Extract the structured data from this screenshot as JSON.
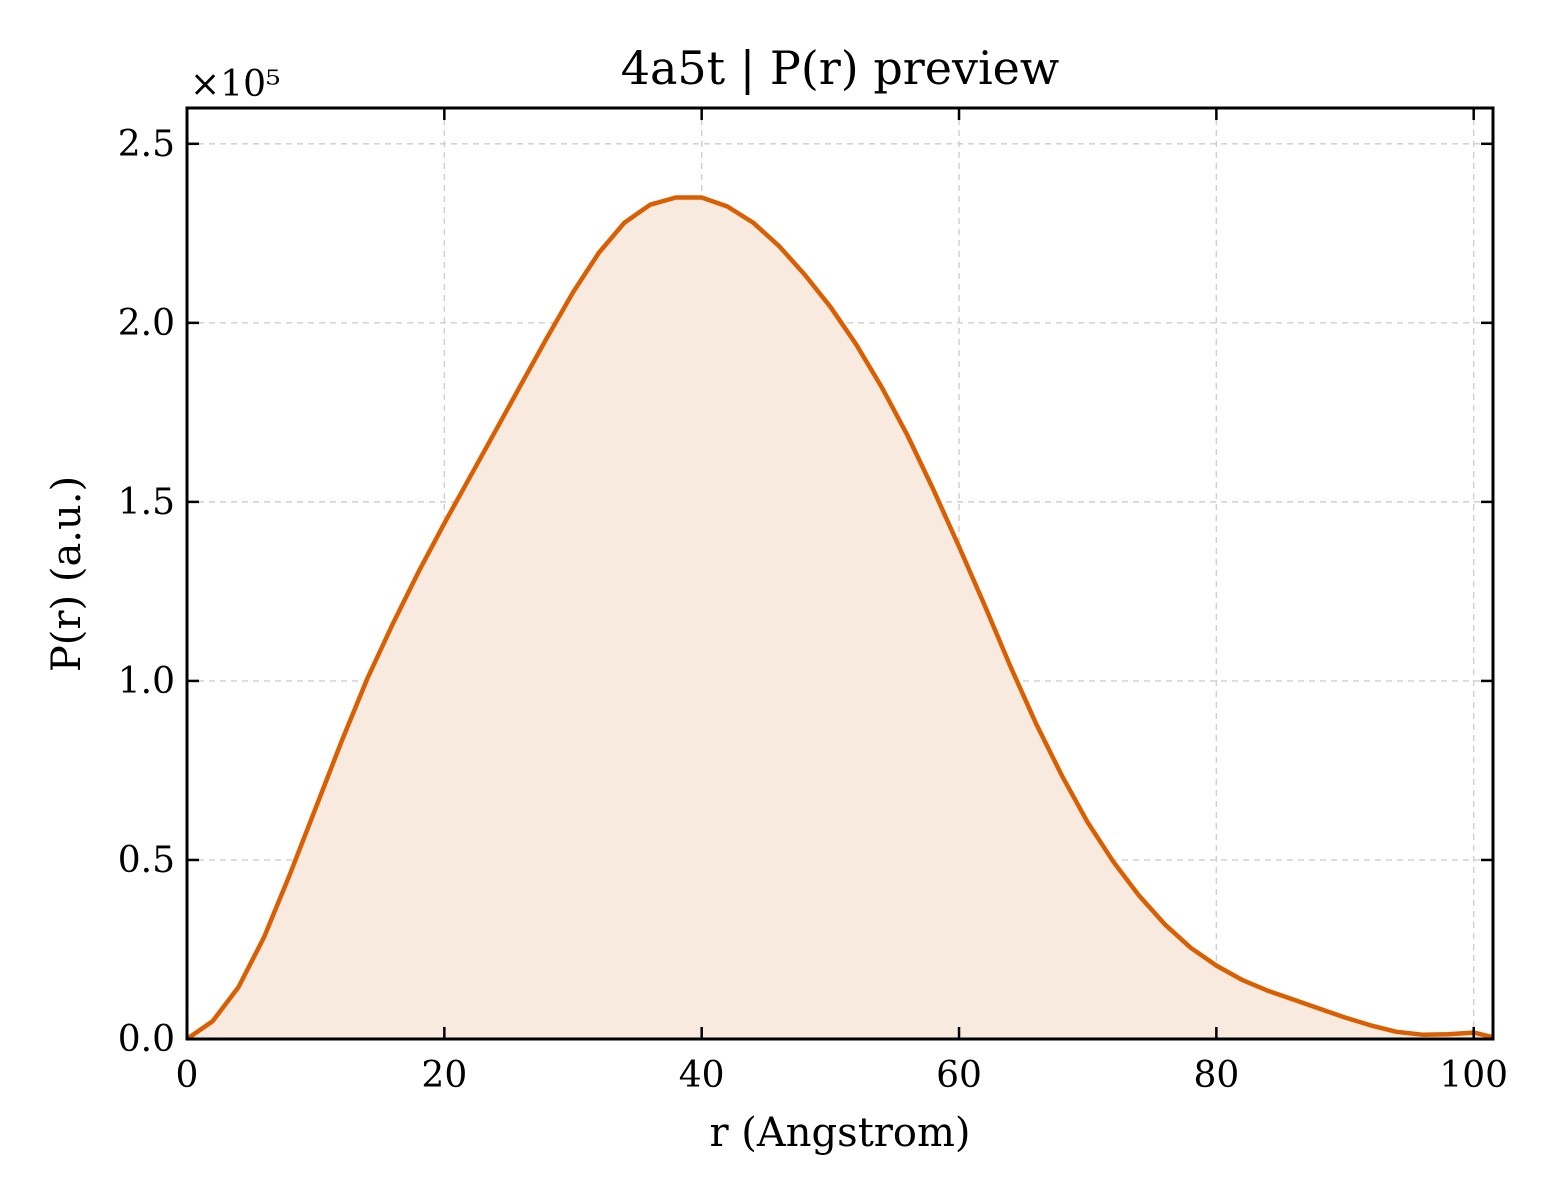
{
  "chart_data": {
    "type": "area",
    "title": "4a5t | P(r) preview",
    "xlabel": "r (Angstrom)",
    "ylabel": "P(r) (a.u.)",
    "y_offset_label": "×10⁵",
    "xlim": [
      0,
      101.5
    ],
    "ylim": [
      0,
      260000
    ],
    "xticks": [
      0,
      20,
      40,
      60,
      80,
      100
    ],
    "xtick_labels": [
      "0",
      "20",
      "40",
      "60",
      "80",
      "100"
    ],
    "yticks": [
      0,
      50000,
      100000,
      150000,
      200000,
      250000
    ],
    "ytick_labels": [
      "0.0",
      "0.5",
      "1.0",
      "1.5",
      "2.0",
      "2.5"
    ],
    "grid": true,
    "line_color": "#d95f02",
    "fill_color": "#f8eadf",
    "series": [
      {
        "x": [
          0,
          2,
          4,
          6,
          8,
          10,
          12,
          14,
          16,
          18,
          20,
          22,
          24,
          26,
          28,
          30,
          32,
          34,
          36,
          38,
          40,
          42,
          44,
          46,
          48,
          50,
          52,
          54,
          56,
          58,
          60,
          62,
          64,
          66,
          68,
          70,
          72,
          74,
          76,
          78,
          80,
          82,
          84,
          86,
          88,
          90,
          92,
          94,
          96,
          98,
          100,
          101.5
        ],
        "y": [
          0,
          5000,
          14500,
          28500,
          46000,
          64500,
          83000,
          100500,
          116000,
          130500,
          144000,
          157000,
          170000,
          183000,
          196000,
          208500,
          219500,
          228000,
          233000,
          235000,
          235000,
          232500,
          228000,
          221500,
          213500,
          204500,
          194000,
          182000,
          168500,
          153500,
          137500,
          121000,
          104000,
          88000,
          73500,
          60500,
          49500,
          40000,
          32000,
          25500,
          20500,
          16500,
          13500,
          11000,
          8500,
          6000,
          3800,
          2000,
          1200,
          1300,
          1800,
          500
        ]
      }
    ]
  }
}
